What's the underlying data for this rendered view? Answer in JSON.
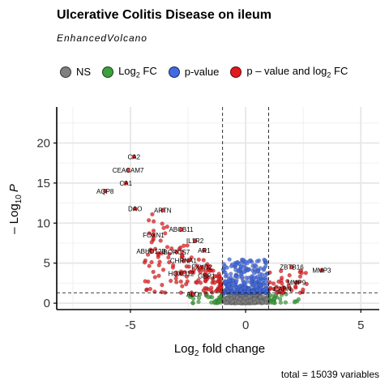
{
  "chart_data": {
    "type": "scatter",
    "title": "Ulcerative Colitis Disease on ileum",
    "subtitle": "EnhancedVolcano",
    "xlabel_prefix": "Log",
    "xlabel_sub": "2",
    "xlabel_suffix": " fold change",
    "ylabel_prefix": "– Log",
    "ylabel_sub": "10",
    "ylabel_italic": "P",
    "xlim": [
      -8.2,
      5.8
    ],
    "ylim": [
      -0.8,
      24.5
    ],
    "xticks": [
      -5,
      0,
      5
    ],
    "yticks": [
      0,
      5,
      10,
      15,
      20
    ],
    "fc_cutoff": 1,
    "p_cutoff_y": 1.3,
    "caption": "total = 15039 variables",
    "legend": [
      {
        "key": "NS",
        "label": "NS",
        "color": "#808080"
      },
      {
        "key": "FC",
        "label": "Log",
        "label_sub": "2",
        "label_suffix": " FC",
        "color": "#3CA03C"
      },
      {
        "key": "P",
        "label": "p-value",
        "color": "#4169E1"
      },
      {
        "key": "FC_P",
        "label": "p – value and log",
        "label_sub": "2",
        "label_suffix": " FC",
        "color": "#E31A1C"
      }
    ],
    "labeled_genes": [
      {
        "name": "CA2",
        "x": -4.85,
        "y": 18.3
      },
      {
        "name": "CEACAM7",
        "x": -5.1,
        "y": 16.6
      },
      {
        "name": "CA1",
        "x": -5.2,
        "y": 15.0
      },
      {
        "name": "AQP8",
        "x": -6.1,
        "y": 14.0
      },
      {
        "name": "DAO",
        "x": -4.8,
        "y": 11.8
      },
      {
        "name": "ARTN",
        "x": -3.6,
        "y": 11.6
      },
      {
        "name": "ABCB11",
        "x": -2.8,
        "y": 9.2
      },
      {
        "name": "FOXN1",
        "x": -4.0,
        "y": 8.5
      },
      {
        "name": "IL1R2",
        "x": -2.2,
        "y": 7.8
      },
      {
        "name": "ABHD12B",
        "x": -4.1,
        "y": 6.5
      },
      {
        "name": "BORCS7",
        "x": -3.0,
        "y": 6.4
      },
      {
        "name": "AR1",
        "x": -1.8,
        "y": 6.6
      },
      {
        "name": "CHRNA1",
        "x": -2.7,
        "y": 5.3
      },
      {
        "name": "FXYD2",
        "x": -1.9,
        "y": 4.5
      },
      {
        "name": "HOXD12",
        "x": -2.8,
        "y": 3.7
      },
      {
        "name": "GBP1",
        "x": -1.7,
        "y": 3.4
      },
      {
        "name": "ZBTB16",
        "x": 2.0,
        "y": 4.5
      },
      {
        "name": "MMP3",
        "x": 3.3,
        "y": 4.1
      },
      {
        "name": "CAPN",
        "x": 1.6,
        "y": 1.8
      },
      {
        "name": "ALD",
        "x": -2.3,
        "y": 1.1
      },
      {
        "name": "MMP9",
        "x": 2.2,
        "y": 2.6
      }
    ]
  }
}
